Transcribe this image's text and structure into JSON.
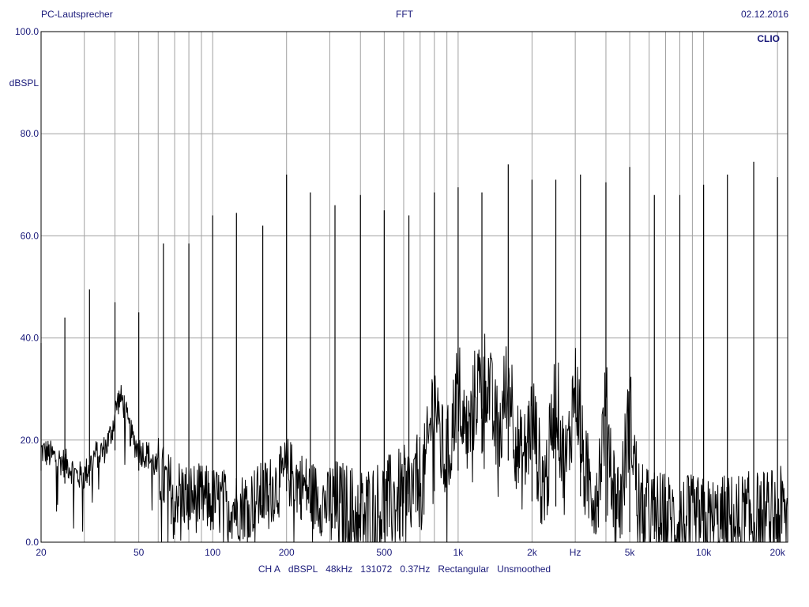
{
  "header": {
    "left": "PC-Lautsprecher",
    "center": "FFT",
    "right": "02.12.2016"
  },
  "watermark": "CLIO",
  "footer_items": [
    "CH A",
    "dBSPL",
    "48kHz",
    "131072",
    "0.37Hz",
    "Rectangular",
    "Unsmoothed"
  ],
  "colors": {
    "trace": "#000000",
    "grid": "#a0a0a0",
    "text": "#1a1a7a"
  },
  "chart_data": {
    "type": "line",
    "title": "FFT",
    "ylabel": "dBSPL",
    "xlabel": "Hz",
    "xscale": "log",
    "xlim": [
      20,
      22000
    ],
    "ylim": [
      0,
      100
    ],
    "grid": true,
    "y_ticks": [
      {
        "value": 0,
        "label": "0.0"
      },
      {
        "value": 20,
        "label": "20.0"
      },
      {
        "value": 40,
        "label": "40.0"
      },
      {
        "value": 60,
        "label": "60.0"
      },
      {
        "value": 80,
        "label": "80.0"
      },
      {
        "value": 100,
        "label": "100.0"
      }
    ],
    "x_ticks": [
      {
        "value": 20,
        "label": "20"
      },
      {
        "value": 50,
        "label": "50"
      },
      {
        "value": 100,
        "label": "100"
      },
      {
        "value": 200,
        "label": "200"
      },
      {
        "value": 500,
        "label": "500"
      },
      {
        "value": 1000,
        "label": "1k"
      },
      {
        "value": 2000,
        "label": "2k"
      },
      {
        "value": 3000,
        "label": "Hz"
      },
      {
        "value": 5000,
        "label": "5k"
      },
      {
        "value": 10000,
        "label": "10k"
      },
      {
        "value": 20000,
        "label": "20k"
      }
    ],
    "series": [
      {
        "peaks": [
          [
            20,
            39
          ],
          [
            25,
            44
          ],
          [
            31.5,
            49.5
          ],
          [
            40,
            47
          ],
          [
            50,
            45
          ],
          [
            63,
            58.5
          ],
          [
            80,
            58.5
          ],
          [
            100,
            64
          ],
          [
            125,
            64.5
          ],
          [
            160,
            62
          ],
          [
            200,
            72
          ],
          [
            250,
            68.5
          ],
          [
            315,
            66
          ],
          [
            400,
            68
          ],
          [
            500,
            65
          ],
          [
            630,
            64
          ],
          [
            800,
            68.5
          ],
          [
            1000,
            69.5
          ],
          [
            1250,
            68.5
          ],
          [
            1600,
            74
          ],
          [
            2000,
            71
          ],
          [
            2500,
            71
          ],
          [
            3150,
            72
          ],
          [
            4000,
            70.5
          ],
          [
            5000,
            73.5
          ],
          [
            6300,
            68
          ],
          [
            8000,
            68
          ],
          [
            10000,
            70
          ],
          [
            12500,
            72
          ],
          [
            16000,
            74.5
          ],
          [
            20000,
            71.5
          ]
        ],
        "noise_floor": [
          [
            20,
            18
          ],
          [
            22,
            17
          ],
          [
            24,
            16
          ],
          [
            26,
            15
          ],
          [
            28,
            13
          ],
          [
            30,
            13
          ],
          [
            33,
            17
          ],
          [
            36,
            18
          ],
          [
            40,
            22
          ],
          [
            42,
            27
          ],
          [
            45,
            22
          ],
          [
            50,
            18
          ],
          [
            55,
            17
          ],
          [
            60,
            14
          ],
          [
            65,
            11
          ],
          [
            70,
            10
          ],
          [
            80,
            9
          ],
          [
            100,
            8
          ],
          [
            130,
            7
          ],
          [
            160,
            9
          ],
          [
            190,
            12
          ],
          [
            200,
            14
          ],
          [
            220,
            12
          ],
          [
            260,
            9
          ],
          [
            300,
            7
          ],
          [
            350,
            6
          ],
          [
            400,
            5
          ],
          [
            500,
            7
          ],
          [
            600,
            9
          ],
          [
            800,
            14
          ],
          [
            1000,
            18
          ],
          [
            1300,
            22
          ],
          [
            1600,
            20
          ],
          [
            2000,
            12
          ],
          [
            2500,
            11
          ],
          [
            3000,
            14
          ],
          [
            4000,
            8
          ],
          [
            5000,
            6
          ],
          [
            7000,
            4
          ],
          [
            10000,
            3
          ],
          [
            15000,
            4
          ],
          [
            21000,
            5
          ]
        ],
        "local_humps": [
          [
            42,
            28
          ],
          [
            800,
            28
          ],
          [
            1000,
            30
          ],
          [
            1200,
            30
          ],
          [
            1300,
            33
          ],
          [
            1600,
            32
          ],
          [
            2000,
            24
          ],
          [
            2500,
            28
          ],
          [
            3000,
            30
          ],
          [
            4000,
            25
          ],
          [
            5000,
            24
          ]
        ]
      }
    ]
  }
}
